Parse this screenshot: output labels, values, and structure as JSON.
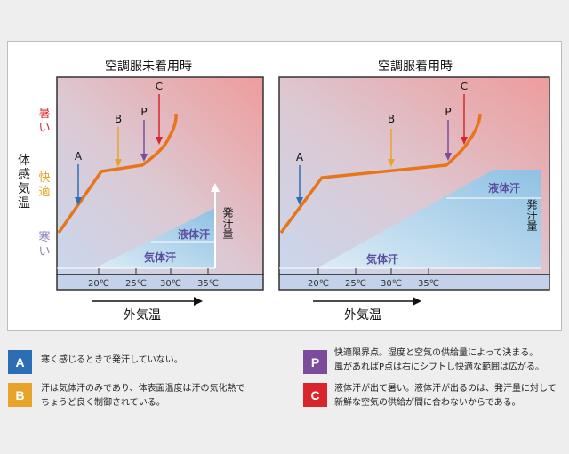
{
  "panels": [
    {
      "title": "空調服未着用時",
      "liquid": "液体汗",
      "gas": "気体汗",
      "sweat_amount": "発汗量",
      "ticks": [
        "20℃",
        "25℃",
        "30℃",
        "35℃"
      ],
      "outside_temp": "外気温"
    },
    {
      "title": "空調服着用時",
      "liquid": "液体汗",
      "gas": "気体汗",
      "sweat_amount": "発汗量",
      "ticks": [
        "20℃",
        "25℃",
        "30℃",
        "35℃"
      ],
      "outside_temp": "外気温"
    }
  ],
  "body_temp_label": [
    "体",
    "感",
    "気",
    "温"
  ],
  "levels": {
    "hot": [
      "暑",
      "い"
    ],
    "comfortable": [
      "快",
      "適"
    ],
    "cold": [
      "寒",
      "い"
    ]
  },
  "points": {
    "A": "A",
    "B": "B",
    "P": "P",
    "C": "C"
  },
  "colors": {
    "A": "#2d6db4",
    "B": "#e8a32a",
    "P": "#7c4c9c",
    "C": "#d8262c",
    "curve": "#e8751a",
    "hot_text": "#d8262c",
    "comfortable_text": "#e8a32a",
    "cold_text": "#8e7dbd"
  },
  "legend": [
    {
      "key": "A",
      "text": [
        "寒く感じるときで発汗していない。"
      ]
    },
    {
      "key": "B",
      "text": [
        "汗は気体汗のみであり、体表面温度は汗の気化熱で",
        "ちょうど良く制御されている。"
      ]
    },
    {
      "key": "P",
      "text": [
        "快適限界点。湿度と空気の供給量によって決まる。",
        "風があればP点は右にシフトし快適な範囲は広がる。"
      ]
    },
    {
      "key": "C",
      "text": [
        "液体汗が出て暑い。液体汗が出るのは、発汗量に対して",
        "新鮮な空気の供給が間に合わないからである。"
      ]
    }
  ]
}
